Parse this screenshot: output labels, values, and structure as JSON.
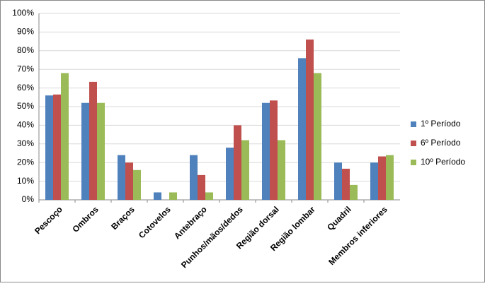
{
  "chart_data": {
    "type": "bar",
    "categories": [
      "Pescoço",
      "Ombros",
      "Braços",
      "Cotovelos",
      "Antebraço",
      "Punhos/mãos/dedos",
      "Região dorsal",
      "Região lombar",
      "Quadril",
      "Membros inferiores"
    ],
    "series": [
      {
        "name": "1º Período",
        "color": "#4f81bd",
        "values": [
          56,
          52,
          24,
          4,
          24,
          28,
          52,
          76,
          20,
          20
        ]
      },
      {
        "name": "6º Período",
        "color": "#c0504d",
        "values": [
          56.5,
          63.3,
          20,
          0,
          13.3,
          40,
          53.3,
          86,
          16.7,
          23.3
        ]
      },
      {
        "name": "10º Período",
        "color": "#9bbb59",
        "values": [
          68,
          52,
          16,
          4,
          4,
          32,
          32,
          68,
          8,
          24
        ]
      }
    ],
    "ylim": [
      0,
      100
    ],
    "yticks": [
      {
        "value": 0,
        "label": "0%"
      },
      {
        "value": 10,
        "label": "10%"
      },
      {
        "value": 20,
        "label": "20%"
      },
      {
        "value": 30,
        "label": "30%"
      },
      {
        "value": 40,
        "label": "40%"
      },
      {
        "value": 50,
        "label": "50%"
      },
      {
        "value": 60,
        "label": "60%"
      },
      {
        "value": 70,
        "label": "70%"
      },
      {
        "value": 80,
        "label": "80%"
      },
      {
        "value": 90,
        "label": "90%"
      },
      {
        "value": 100,
        "label": "100%"
      }
    ],
    "grid": true,
    "legend": "right"
  }
}
